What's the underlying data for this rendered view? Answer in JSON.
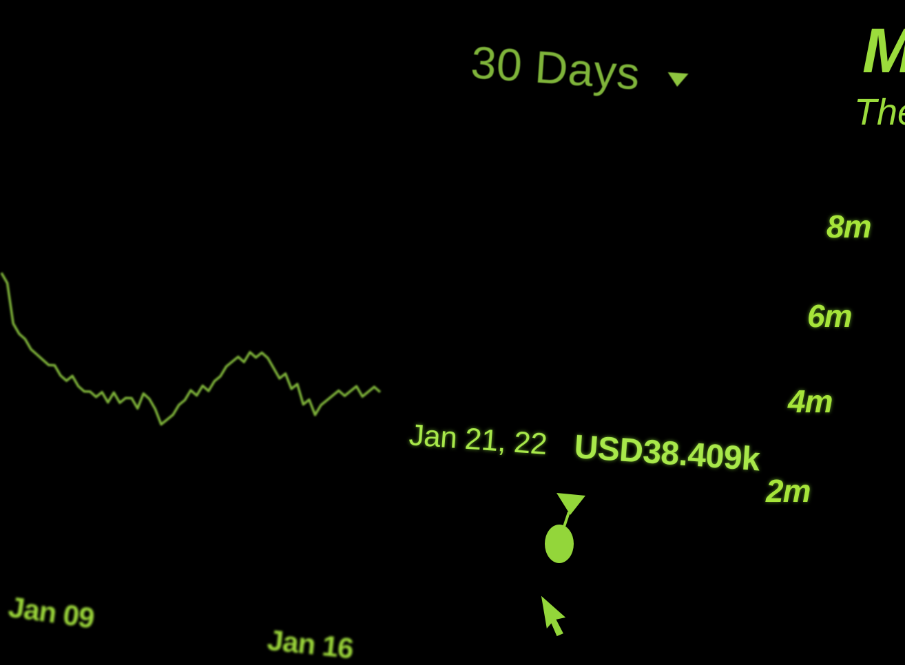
{
  "range_selector": {
    "label": "30 Days"
  },
  "panel": {
    "title": "M",
    "subtitle": "The"
  },
  "tooltip": {
    "date": "Jan 21, 22",
    "value": "USD38.409k"
  },
  "colors": {
    "accent": "#a6e43a",
    "line": "#7fb43a",
    "background": "#000000"
  },
  "icons": {
    "dropdown": "triangle-down-icon",
    "cursor": "mouse-pointer-icon"
  },
  "chart_data": {
    "type": "line",
    "title": "",
    "xlabel": "",
    "ylabel": "",
    "y_tick_labels": [
      "8m",
      "6m",
      "4m",
      "2m"
    ],
    "y_ticks": [
      8,
      6,
      4,
      2
    ],
    "x_tick_labels": [
      "Jan 09",
      "Jan 16"
    ],
    "ylim": [
      0,
      9
    ],
    "series": [
      {
        "values": [
          6.9,
          6.7,
          5.9,
          5.7,
          5.6,
          5.4,
          5.3,
          5.2,
          5.1,
          5.1,
          4.9,
          4.8,
          4.9,
          4.7,
          4.6,
          4.6,
          4.5,
          4.6,
          4.4,
          4.6,
          4.4,
          4.5,
          4.5,
          4.3,
          4.6,
          4.5,
          4.3,
          4.0,
          4.1,
          4.2,
          4.4,
          4.5,
          4.7,
          4.6,
          4.8,
          4.7,
          4.9,
          5.0,
          5.2,
          5.3,
          5.4,
          5.3,
          5.5,
          5.4,
          5.5,
          5.4,
          5.2,
          5.0,
          5.1,
          4.8,
          4.9,
          4.5,
          4.6,
          4.3,
          4.5,
          4.6,
          4.7,
          4.8,
          4.7,
          4.8,
          4.9,
          4.7,
          4.8,
          4.9,
          4.8
        ]
      }
    ],
    "highlight": {
      "date": "Jan 21, 22",
      "value": "USD38.409k"
    }
  }
}
